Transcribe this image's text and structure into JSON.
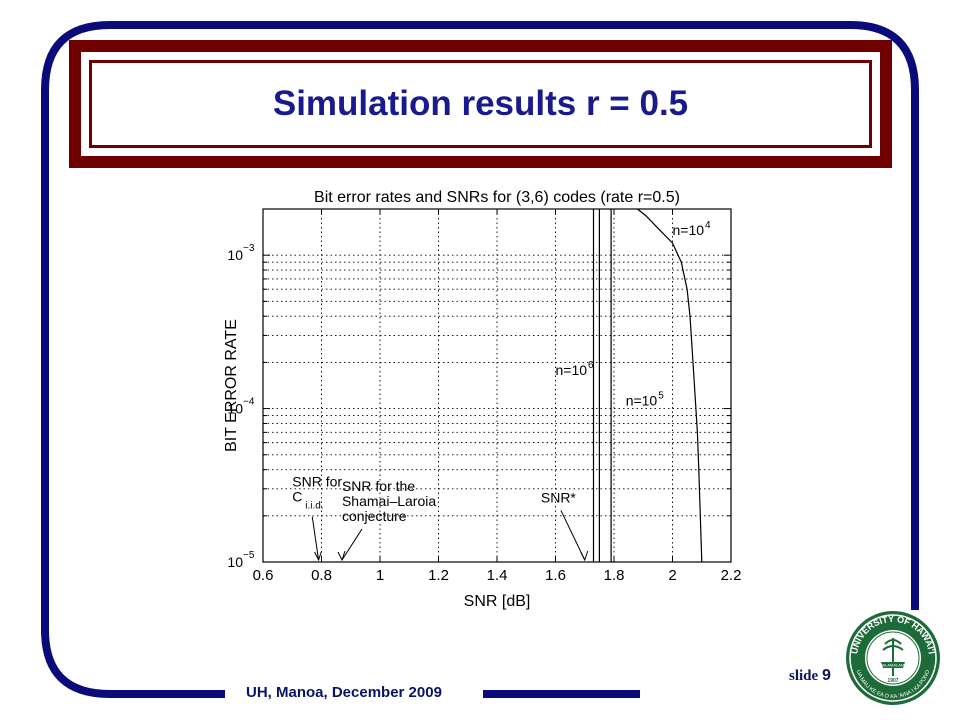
{
  "slide": {
    "title": "Simulation results r = 0.5",
    "footer": "UH, Manoa, December 2009",
    "slide_label": "slide",
    "slide_number": "9"
  },
  "colors": {
    "frame": "#0a0a7a",
    "title_border": "#6e0000",
    "title_text": "#1a1a8c",
    "logo_green": "#1e6b3a"
  },
  "logo": {
    "name": "university-of-hawaii-seal",
    "text_top": "UNIVERSITY OF HAWAI'I",
    "text_bottom": "UA MAU KE EA O KA 'AINA I KA PONO",
    "year": "1907",
    "banner": "MALAMALAMA"
  },
  "chart_data": {
    "type": "line",
    "title": "Bit error rates and SNRs for (3,6) codes (rate r=0.5)",
    "xlabel": "SNR [dB]",
    "ylabel": "BIT ERROR RATE",
    "xlim": [
      0.6,
      2.2
    ],
    "ylim": [
      1e-05,
      0.002
    ],
    "y_scale": "log",
    "x_ticks": [
      0.6,
      0.8,
      1,
      1.2,
      1.4,
      1.6,
      1.8,
      2,
      2.2
    ],
    "x_tick_labels": [
      "0.6",
      "0.8",
      "1",
      "1.2",
      "1.4",
      "1.6",
      "1.8",
      "2",
      "2.2"
    ],
    "y_ticks": [
      1e-05,
      0.0001,
      0.001
    ],
    "y_tick_labels": [
      {
        "base": "10",
        "exp": "−5"
      },
      {
        "base": "10",
        "exp": "−4"
      },
      {
        "base": "10",
        "exp": "−3"
      }
    ],
    "grid": true,
    "series": [
      {
        "name": "n=10^4",
        "x": [
          1.88,
          1.91,
          1.95,
          2.0,
          2.03,
          2.05,
          2.06,
          2.07,
          2.08,
          2.085,
          2.09,
          2.095,
          2.1
        ],
        "y": [
          0.002,
          0.0018,
          0.0015,
          0.0012,
          0.0009,
          0.0006,
          0.0004,
          0.0002,
          0.0001,
          7e-05,
          4e-05,
          2e-05,
          1e-05
        ]
      },
      {
        "name": "n=10^5",
        "x": [
          1.79,
          1.79
        ],
        "y": [
          0.002,
          1e-05
        ]
      },
      {
        "name": "n=10^6",
        "x": [
          1.75,
          1.75
        ],
        "y": [
          0.002,
          1e-05
        ]
      },
      {
        "name": "n=10^6 upper",
        "x": [
          1.73,
          1.73
        ],
        "y": [
          0.002,
          1e-05
        ]
      }
    ],
    "labels": [
      {
        "key": "n4",
        "base": "n=10",
        "exp": "4",
        "x": 2.0,
        "y": 0.00135
      },
      {
        "key": "n5",
        "base": "n=10",
        "exp": "5",
        "x": 1.84,
        "y": 0.000105
      },
      {
        "key": "n6",
        "base": "n=10",
        "exp": "6",
        "x": 1.6,
        "y": 0.000165
      }
    ],
    "annotations": [
      {
        "key": "snr-ciid",
        "lines": [
          "SNR for",
          "C"
        ],
        "sub": "i.i.d.",
        "arrow_x": 0.79,
        "text_x": 0.7,
        "text_y": 3.1e-05
      },
      {
        "key": "snr-shamai",
        "lines": [
          "SNR for the",
          "Shamai–Laroia",
          "conjecture"
        ],
        "arrow_x": 0.87,
        "text_x": 0.87,
        "text_y": 2.9e-05
      },
      {
        "key": "snr-star",
        "lines": [
          "SNR*"
        ],
        "arrow_x": 1.7,
        "text_x": 1.55,
        "text_y": 2.45e-05
      }
    ]
  }
}
